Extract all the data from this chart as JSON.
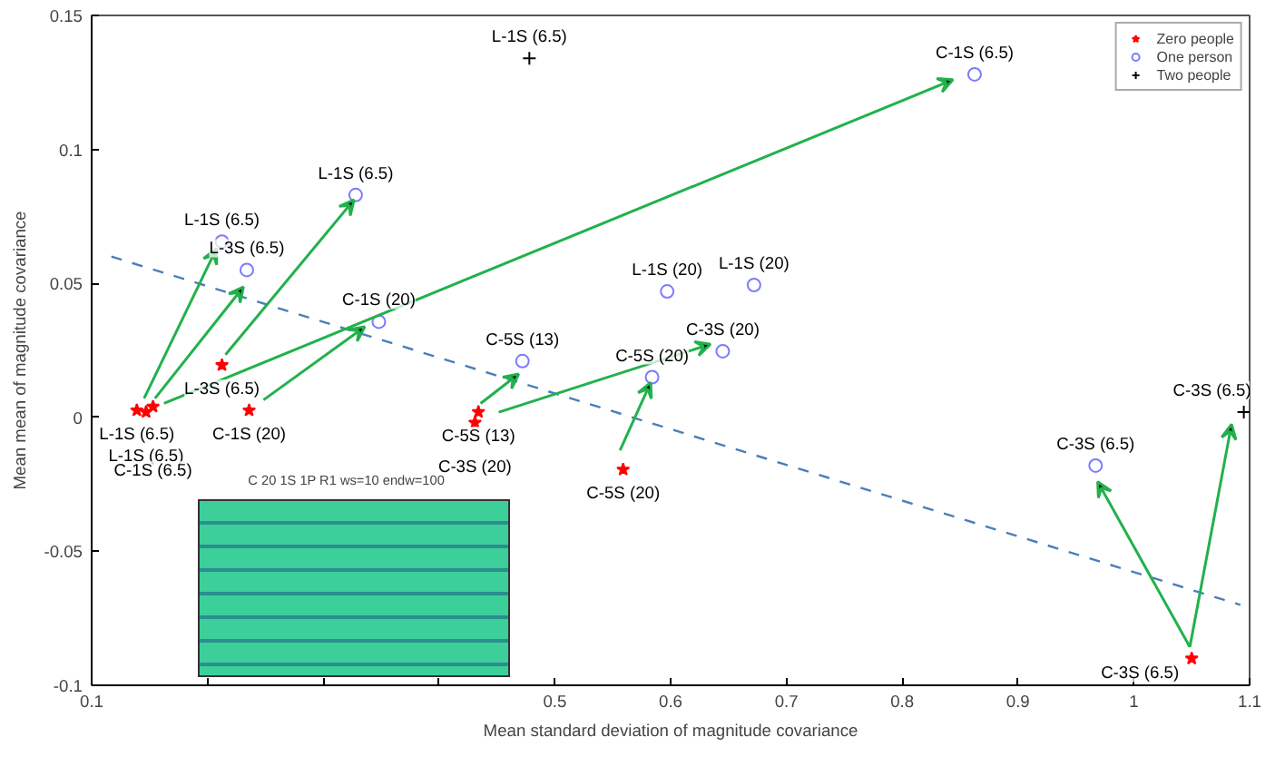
{
  "chart_data": {
    "type": "scatter",
    "xlabel": "Mean standard deviation of magnitude covariance",
    "ylabel": "Mean mean of magnitude covariance",
    "xlim": [
      0.1,
      1.1
    ],
    "xticks": [
      0.1,
      {
        "value": 0.2,
        "label": null
      },
      {
        "value": 0.3,
        "label": null
      },
      {
        "value": 0.4,
        "label": null
      },
      0.5,
      0.6,
      0.7,
      0.8,
      0.9,
      1,
      1.1
    ],
    "ylim": [
      -0.1,
      0.15
    ],
    "yticks": [
      -0.1,
      -0.05,
      0,
      0.05,
      0.1,
      0.15
    ],
    "grid": false,
    "legend": "top right",
    "series": [
      {
        "name": "Zero people",
        "color": "#ff0000",
        "marker": "star",
        "x": [
          0.139,
          0.147,
          0.153,
          0.2125,
          0.236,
          0.434,
          0.431,
          0.559,
          1.05
        ],
        "values": [
          0.0026,
          0.002,
          0.004,
          0.0195,
          0.0026,
          0.002,
          -0.002,
          -0.0195,
          -0.09
        ],
        "value_labels": [
          "L-1S (6.5)",
          "L-1S (6.5)",
          "C-1S (6.5)",
          "L-3S (6.5)",
          "C-1S (20)",
          "C-5S (13)",
          "C-3S (20)",
          "C-5S (20)",
          "C-3S (6.5)"
        ]
      },
      {
        "name": "One person",
        "color": "#7b7bff",
        "marker": "circle",
        "x": [
          0.2125,
          0.234,
          0.328,
          0.348,
          0.472,
          0.584,
          0.597,
          0.672,
          0.645,
          0.8625,
          0.967
        ],
        "values": [
          0.0656,
          0.055,
          0.083,
          0.0357,
          0.021,
          0.015,
          0.047,
          0.0494,
          0.0247,
          0.128,
          -0.018
        ],
        "value_labels": [
          "L-1S (6.5)",
          "L-3S (6.5)",
          "L-1S (6.5)",
          "C-1S (20)",
          "C-5S (13)",
          "C-5S (20)",
          "L-1S (20)",
          "L-1S (20)",
          "C-3S (20)",
          "C-1S (6.5)",
          "C-3S (6.5)"
        ]
      },
      {
        "name": "Two people",
        "color": "#000000",
        "marker": "cross",
        "x": [
          0.478,
          1.095
        ],
        "values": [
          0.134,
          0.002
        ],
        "value_labels": [
          "L-1S (6.5)",
          "C-3S (6.5)"
        ]
      },
      {
        "type": "line",
        "color": "#4a7ebb",
        "marker": "none",
        "line_style": "dashed",
        "x": [
          0.117,
          1.092
        ],
        "values": [
          0.06,
          -0.07
        ]
      }
    ],
    "annotations": [
      "C 20 1S 1P R1 ws=10 endw=100"
    ]
  }
}
